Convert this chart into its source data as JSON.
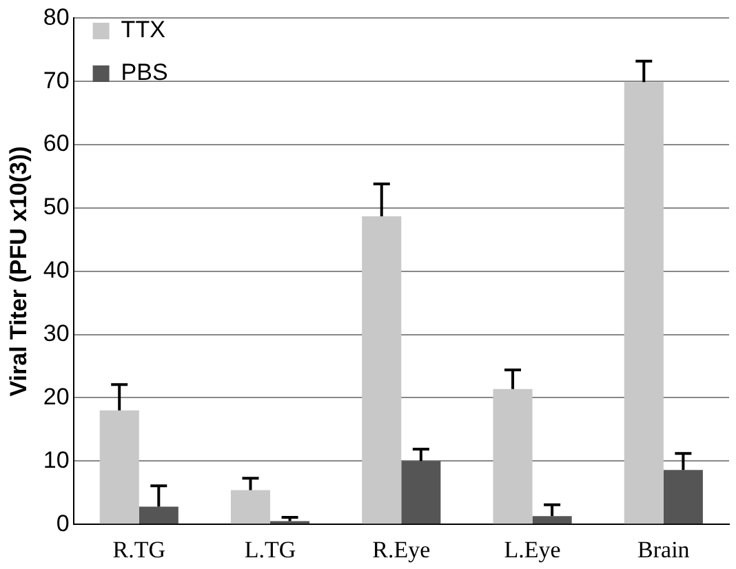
{
  "chart_data": {
    "type": "bar",
    "ylabel": "Viral Titer (PFU x10(3))",
    "categories": [
      "R.TG",
      "L.TG",
      "R.Eye",
      "L.Eye",
      "Brain"
    ],
    "series": [
      {
        "name": "TTX",
        "color": "#c8c8c8",
        "values": [
          18,
          5.4,
          48.7,
          21.4,
          69.9
        ],
        "errors": [
          [
            18,
            22.1
          ],
          [
            5.4,
            7.3
          ],
          [
            48.7,
            53.8
          ],
          [
            21.4,
            24.4
          ],
          [
            69.9,
            73.2
          ]
        ]
      },
      {
        "name": "PBS",
        "color": "#555555",
        "values": [
          2.8,
          0.5,
          10,
          1.3,
          8.6
        ],
        "errors": [
          [
            2.8,
            6.1
          ],
          [
            0.5,
            1.1
          ],
          [
            10,
            11.9
          ],
          [
            1.3,
            3.1
          ],
          [
            8.6,
            11.2
          ]
        ]
      }
    ],
    "ylim": [
      0,
      80
    ],
    "yticks": [
      0,
      10,
      20,
      30,
      40,
      50,
      60,
      70,
      80
    ],
    "grid": "y",
    "legend": "top left"
  }
}
